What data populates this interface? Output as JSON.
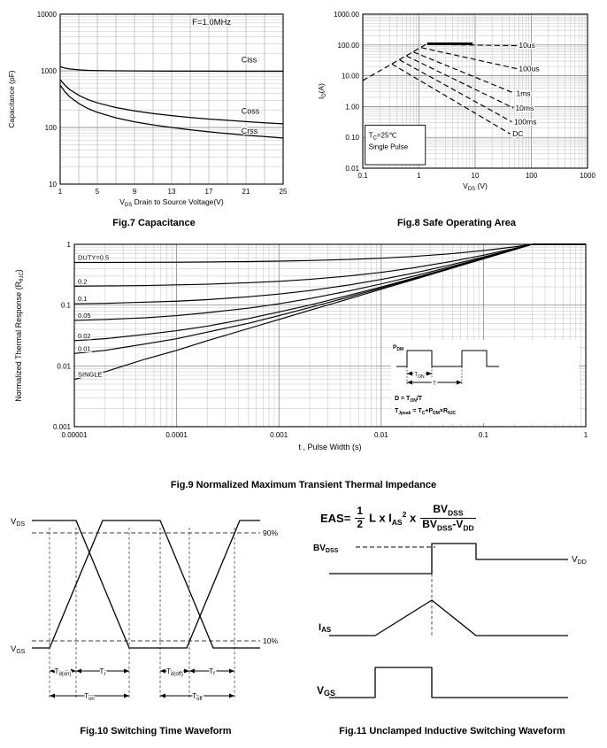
{
  "chart_data": [
    {
      "id": "fig7",
      "type": "line",
      "caption": "Fig.7 Capacitance",
      "annotation": "F=1.0MHz",
      "annotation_at": [
        15.2,
        6500
      ],
      "ylabel": "Capacitance (pF)",
      "xlabel_parts": [
        {
          "t": "V"
        },
        {
          "t": "DS",
          "s": 1
        },
        {
          "t": " Drain to Source Voltage(V)"
        }
      ],
      "x_scale": "linear",
      "y_scale": "log",
      "xlim": [
        1,
        25
      ],
      "ylim": [
        10,
        10000
      ],
      "x_ticks": [
        "1",
        "5",
        "9",
        "13",
        "17",
        "21",
        "25"
      ],
      "y_ticks": [
        "10",
        "100",
        "1000",
        "10000"
      ],
      "x": [
        1,
        1.5,
        2,
        3,
        4,
        5,
        7,
        9,
        11,
        13,
        15,
        17,
        19,
        21,
        23,
        25
      ],
      "series": [
        {
          "name": "Ciss",
          "y": [
            1180,
            1120,
            1080,
            1040,
            1020,
            1010,
            1000,
            995,
            990,
            988,
            986,
            985,
            984,
            983,
            982,
            981
          ],
          "label_at": [
            20.5,
            1400
          ]
        },
        {
          "name": "Coss",
          "y": [
            700,
            560,
            470,
            370,
            310,
            272,
            225,
            196,
            176,
            162,
            150,
            141,
            134,
            127,
            121,
            116
          ],
          "label_at": [
            20.5,
            175
          ]
        },
        {
          "name": "Crss",
          "y": [
            560,
            430,
            350,
            265,
            215,
            185,
            148,
            126,
            111,
            100,
            91,
            84,
            78,
            73,
            69,
            65
          ],
          "label_at": [
            20.5,
            78
          ]
        }
      ]
    },
    {
      "id": "fig8",
      "type": "line",
      "caption": "Fig.8 Safe Operating Area",
      "xlabel_parts": [
        {
          "t": "V"
        },
        {
          "t": "DS",
          "s": 1
        },
        {
          "t": " (V)"
        }
      ],
      "ylabel_parts": [
        {
          "t": "I"
        },
        {
          "t": "D",
          "s": 1
        },
        {
          "t": "(A)"
        }
      ],
      "x_scale": "log",
      "y_scale": "log",
      "xlim": [
        0.1,
        1000
      ],
      "ylim": [
        0.01,
        1000
      ],
      "x_ticks": [
        "0.1",
        "1",
        "10",
        "100",
        "1000"
      ],
      "y_ticks": [
        "0.01",
        "0.10",
        "1.00",
        "10.00",
        "100.00",
        "1000.00"
      ],
      "lines": [
        {
          "name": "",
          "points": [
            [
              0.1,
              7
            ],
            [
              1.4,
              110
            ]
          ],
          "dash": true
        },
        {
          "name": "",
          "points": [
            [
              1.4,
              110
            ],
            [
              9,
              110
            ]
          ],
          "width": 2.8
        },
        {
          "name": "10us",
          "points": [
            [
              1.4,
              105
            ],
            [
              55,
              95
            ]
          ],
          "dash": true,
          "label_at": [
            60,
            98
          ]
        },
        {
          "name": "100us",
          "points": [
            [
              1.1,
              82
            ],
            [
              55,
              17
            ]
          ],
          "dash": true,
          "label_at": [
            60,
            17
          ]
        },
        {
          "name": "1ms",
          "points": [
            [
              0.8,
              59
            ],
            [
              50,
              2.7
            ]
          ],
          "dash": true,
          "label_at": [
            54,
            2.7
          ]
        },
        {
          "name": "10ms",
          "points": [
            [
              0.6,
              44
            ],
            [
              48,
              0.9
            ]
          ],
          "dash": true,
          "label_at": [
            52,
            0.9
          ]
        },
        {
          "name": "100ms",
          "points": [
            [
              0.45,
              33
            ],
            [
              45,
              0.32
            ]
          ],
          "dash": true,
          "label_at": [
            49,
            0.32
          ]
        },
        {
          "name": "DC",
          "points": [
            [
              0.33,
              24
            ],
            [
              42,
              0.13
            ]
          ],
          "dash": true,
          "label_at": [
            46,
            0.13
          ]
        }
      ],
      "box": {
        "x": [
          0.11,
          1.3
        ],
        "y": [
          0.013,
          0.25
        ],
        "line1": [
          {
            "t": "T"
          },
          {
            "t": "C",
            "s": 1
          },
          {
            "t": "=25℃"
          }
        ],
        "line2": [
          {
            "t": "Single Pulse"
          }
        ]
      }
    },
    {
      "id": "fig9",
      "type": "line",
      "caption": "Fig.9 Normalized Maximum Transient Thermal Impedance",
      "xlabel": "t , Pulse Width (s)",
      "ylabel_parts": [
        {
          "t": "Normalized Thermal Response (R"
        },
        {
          "t": "θJC",
          "s": 1
        },
        {
          "t": ")"
        }
      ],
      "x_scale": "log",
      "y_scale": "log",
      "xlim": [
        1e-05,
        1
      ],
      "ylim": [
        0.001,
        1
      ],
      "x_ticks": [
        "0.00001",
        "0.0001",
        "0.001",
        "0.01",
        "0.1",
        "1"
      ],
      "y_ticks": [
        "0.001",
        "0.01",
        "0.1",
        "1"
      ],
      "x": [
        1e-05,
        2e-05,
        5e-05,
        0.0001,
        0.0002,
        0.0005,
        0.001,
        0.002,
        0.005,
        0.01,
        0.02,
        0.05,
        0.1,
        0.2,
        0.3,
        0.5,
        1
      ],
      "series": [
        {
          "name": "DUTY=0.5",
          "y": [
            0.503,
            0.504,
            0.506,
            0.509,
            0.513,
            0.52,
            0.529,
            0.541,
            0.565,
            0.591,
            0.629,
            0.704,
            0.789,
            0.908,
            1,
            1,
            1
          ]
        },
        {
          "name": "0.2",
          "y": [
            0.205,
            0.207,
            0.21,
            0.215,
            0.221,
            0.233,
            0.246,
            0.265,
            0.303,
            0.346,
            0.407,
            0.527,
            0.662,
            0.853,
            1,
            1,
            1
          ]
        },
        {
          "name": "0.1",
          "y": [
            0.105,
            0.107,
            0.112,
            0.116,
            0.123,
            0.137,
            0.152,
            0.173,
            0.216,
            0.264,
            0.332,
            0.467,
            0.62,
            0.835,
            1,
            1,
            1
          ]
        },
        {
          "name": "0.05",
          "y": [
            0.056,
            0.058,
            0.062,
            0.067,
            0.075,
            0.089,
            0.105,
            0.128,
            0.173,
            0.223,
            0.295,
            0.438,
            0.598,
            0.826,
            1,
            1,
            1
          ]
        },
        {
          "name": "0.02",
          "y": [
            0.026,
            0.028,
            0.033,
            0.038,
            0.045,
            0.06,
            0.077,
            0.1,
            0.147,
            0.199,
            0.273,
            0.42,
            0.586,
            0.82,
            1,
            1,
            1
          ]
        },
        {
          "name": "0.01",
          "y": [
            0.016,
            0.018,
            0.023,
            0.028,
            0.036,
            0.05,
            0.067,
            0.091,
            0.138,
            0.191,
            0.266,
            0.414,
            0.582,
            0.818,
            1,
            1,
            1
          ]
        },
        {
          "name": "SINGLE",
          "y": [
            0.006,
            0.008,
            0.013,
            0.018,
            0.026,
            0.041,
            0.058,
            0.082,
            0.129,
            0.183,
            0.258,
            0.408,
            0.577,
            0.816,
            1,
            1,
            1
          ]
        }
      ],
      "inset": {
        "pdm": [
          {
            "t": "P"
          },
          {
            "t": "DM",
            "s": 1
          }
        ],
        "ton": [
          {
            "t": "T"
          },
          {
            "t": "ON",
            "s": 1
          }
        ],
        "t": [
          {
            "t": "T"
          }
        ],
        "formula1": [
          {
            "t": "D = T"
          },
          {
            "t": "ON",
            "s": 1
          },
          {
            "t": "/T"
          }
        ],
        "formula2": [
          {
            "t": "T"
          },
          {
            "t": "Jpeak",
            "s": 1
          },
          {
            "t": " = T"
          },
          {
            "t": "C",
            "s": 1
          },
          {
            "t": "+P"
          },
          {
            "t": "DM",
            "s": 1
          },
          {
            "t": "×R"
          },
          {
            "t": "θJC",
            "s": 1
          }
        ]
      }
    },
    {
      "id": "fig10",
      "type": "waveform",
      "caption": "Fig.10 Switching Time Waveform",
      "labels": {
        "vds": [
          {
            "t": "V"
          },
          {
            "t": "DS",
            "s": 1
          }
        ],
        "vgs": [
          {
            "t": "V"
          },
          {
            "t": "GS",
            "s": 1
          }
        ],
        "p90": "90%",
        "p10": "10%",
        "td_on": [
          {
            "t": "T"
          },
          {
            "t": "d(on)",
            "s": 1
          }
        ],
        "tr": [
          {
            "t": "T"
          },
          {
            "t": "r",
            "s": 1
          }
        ],
        "td_off": [
          {
            "t": "T"
          },
          {
            "t": "d(off)",
            "s": 1
          }
        ],
        "tf": [
          {
            "t": "T"
          },
          {
            "t": "f",
            "s": 1
          }
        ],
        "t_on": [
          {
            "t": "T"
          },
          {
            "t": "on",
            "s": 1
          }
        ],
        "t_off": [
          {
            "t": "T"
          },
          {
            "t": "off",
            "s": 1
          }
        ]
      }
    },
    {
      "id": "fig11",
      "type": "waveform",
      "caption": "Fig.11 Unclamped Inductive Switching Waveform",
      "formula": {
        "lhs": "EAS=",
        "frac1_num": "1",
        "frac1_den": "2",
        "term_pre": "L x I",
        "term_sub": "AS",
        "term_sup": "2",
        "times": "x",
        "num_main": "BV",
        "num_sub": "DSS",
        "den_main": "BV",
        "den_sub": "DSS",
        "den_main2": "-V",
        "den_sub2": "DD"
      },
      "labels": {
        "bvdss": [
          {
            "t": "BV"
          },
          {
            "t": "DSS",
            "s": 1
          }
        ],
        "vdd": [
          {
            "t": "V"
          },
          {
            "t": "DD",
            "s": 1
          }
        ],
        "ias": [
          {
            "t": "I"
          },
          {
            "t": "AS",
            "s": 1
          }
        ],
        "vgs": [
          {
            "t": "V"
          },
          {
            "t": "GS",
            "s": 1
          }
        ]
      }
    }
  ]
}
